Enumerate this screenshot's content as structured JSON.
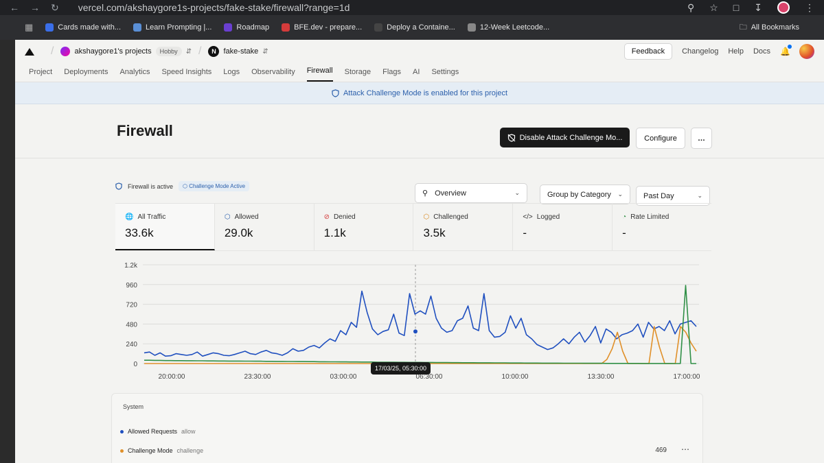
{
  "browser": {
    "url": "vercel.com/akshaygore1s-projects/fake-stake/firewall?range=1d",
    "bookmarks": [
      {
        "label": "Cards made with...",
        "color": "#3a6ee8"
      },
      {
        "label": "Learn Prompting |...",
        "color": "#5a8fd6"
      },
      {
        "label": "Roadmap",
        "color": "#6a3fd0"
      },
      {
        "label": "BFE.dev - prepare...",
        "color": "#d43b3b"
      },
      {
        "label": "Deploy a Containe...",
        "color": "#444444"
      },
      {
        "label": "12-Week Leetcode...",
        "color": "#888888"
      }
    ],
    "all_bookmarks": "All Bookmarks"
  },
  "topbar": {
    "team": "akshaygore1's projects",
    "plan": "Hobby",
    "project": "fake-stake",
    "feedback": "Feedback",
    "links": [
      "Changelog",
      "Help",
      "Docs"
    ]
  },
  "tabs": [
    "Project",
    "Deployments",
    "Analytics",
    "Speed Insights",
    "Logs",
    "Observability",
    "Firewall",
    "Storage",
    "Flags",
    "AI",
    "Settings"
  ],
  "active_tab": "Firewall",
  "banner": "Attack Challenge Mode is enabled for this project",
  "page": {
    "title": "Firewall",
    "disable_button": "Disable Attack Challenge Mo...",
    "configure_button": "Configure",
    "more": "…"
  },
  "status": {
    "active": "Firewall is active",
    "mode": "Challenge Mode Active"
  },
  "filters": {
    "view": "Overview",
    "group": "Group by Category",
    "range": "Past Day"
  },
  "metrics": [
    {
      "label": "All Traffic",
      "value": "33.6k",
      "icon": "globe-icon",
      "color": "#333333"
    },
    {
      "label": "Allowed",
      "value": "29.0k",
      "icon": "shield-check-icon",
      "color": "#2b5fab"
    },
    {
      "label": "Denied",
      "value": "1.1k",
      "icon": "shield-off-icon",
      "color": "#d33a3a"
    },
    {
      "label": "Challenged",
      "value": "3.5k",
      "icon": "shield-icon",
      "color": "#d88a20"
    },
    {
      "label": "Logged",
      "value": "-",
      "icon": "code-icon",
      "color": "#333333"
    },
    {
      "label": "Rate Limited",
      "value": "-",
      "icon": "gauge-icon",
      "color": "#2f8f46"
    }
  ],
  "chart_data": {
    "type": "line",
    "y_ticks": [
      "1.2k",
      "960",
      "720",
      "480",
      "240",
      "0"
    ],
    "ylim": [
      0,
      1200
    ],
    "x_ticks": [
      "20:00:00",
      "23:30:00",
      "03:00:00",
      "06:30:00",
      "10:00:00",
      "13:30:00",
      "17:00:00"
    ],
    "grid": true,
    "series": [
      {
        "color": "#1f4fbf",
        "values": [
          130,
          140,
          100,
          130,
          90,
          95,
          120,
          110,
          100,
          110,
          140,
          90,
          110,
          130,
          120,
          100,
          95,
          110,
          130,
          150,
          120,
          110,
          140,
          160,
          130,
          120,
          100,
          130,
          180,
          150,
          160,
          200,
          220,
          190,
          250,
          300,
          270,
          400,
          350,
          500,
          440,
          880,
          620,
          420,
          350,
          390,
          410,
          600,
          370,
          340,
          850,
          600,
          640,
          600,
          820,
          550,
          430,
          380,
          400,
          520,
          550,
          700,
          430,
          400,
          850,
          400,
          320,
          330,
          380,
          580,
          430,
          550,
          350,
          300,
          230,
          200,
          170,
          190,
          240,
          300,
          240,
          320,
          380,
          260,
          340,
          450,
          250,
          420,
          380,
          300,
          350,
          370,
          400,
          480,
          320,
          500,
          420,
          450,
          400,
          520,
          360,
          480,
          500,
          520,
          450
        ]
      },
      {
        "color": "#e0902a",
        "values": [
          0,
          0,
          0,
          0,
          0,
          0,
          0,
          0,
          0,
          0,
          0,
          0,
          0,
          0,
          0,
          0,
          0,
          0,
          0,
          0,
          0,
          0,
          0,
          0,
          0,
          0,
          0,
          0,
          0,
          0,
          0,
          0,
          0,
          0,
          0,
          0,
          0,
          0,
          0,
          0,
          0,
          0,
          0,
          0,
          0,
          0,
          0,
          0,
          0,
          0,
          0,
          0,
          0,
          0,
          0,
          0,
          0,
          0,
          0,
          0,
          0,
          0,
          0,
          0,
          0,
          0,
          0,
          0,
          0,
          0,
          0,
          0,
          0,
          0,
          0,
          0,
          0,
          0,
          0,
          0,
          0,
          0,
          0,
          0,
          0,
          0,
          0,
          0,
          50,
          180,
          380,
          150,
          0,
          0,
          0,
          0,
          0,
          450,
          200,
          0,
          0,
          0,
          450,
          380,
          250,
          150
        ]
      },
      {
        "color": "#2f8f46",
        "values": [
          40,
          40,
          38,
          38,
          36,
          36,
          35,
          35,
          34,
          34,
          33,
          33,
          32,
          32,
          31,
          31,
          30,
          30,
          30,
          29,
          29,
          28,
          28,
          27,
          27,
          26,
          26,
          25,
          25,
          24,
          24,
          23,
          23,
          22,
          22,
          21,
          21,
          20,
          20,
          19,
          19,
          18,
          18,
          18,
          17,
          17,
          16,
          16,
          15,
          15,
          14,
          14,
          14,
          13,
          13,
          12,
          12,
          12,
          11,
          11,
          10,
          10,
          10,
          9,
          9,
          9,
          8,
          8,
          8,
          7,
          7,
          7,
          6,
          6,
          6,
          5,
          5,
          5,
          5,
          4,
          4,
          4,
          4,
          3,
          3,
          3,
          3,
          2,
          2,
          2,
          2,
          2,
          2,
          2,
          1,
          1,
          1,
          1,
          1,
          1,
          0,
          0,
          950,
          0,
          0
        ]
      }
    ]
  },
  "tooltip": "17/03/25, 05:30:00",
  "legend": {
    "title": "System",
    "items": [
      {
        "label": "Allowed Requests",
        "sub": "allow",
        "color": "#1f4fbf"
      },
      {
        "label": "Challenge Mode",
        "sub": "challenge",
        "color": "#e0902a"
      }
    ],
    "count": "469"
  }
}
